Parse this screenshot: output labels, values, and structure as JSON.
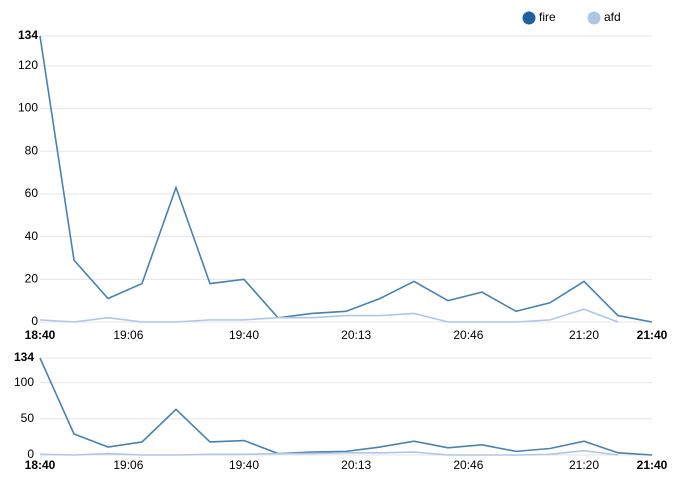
{
  "chart_data": {
    "type": "line",
    "x": [
      "18:40",
      "18:50",
      "19:00",
      "19:10",
      "19:20",
      "19:30",
      "19:40",
      "19:50",
      "20:00",
      "20:10",
      "20:20",
      "20:30",
      "20:40",
      "20:50",
      "21:00",
      "21:10",
      "21:20",
      "21:30",
      "21:40"
    ],
    "series": [
      {
        "name": "fire",
        "color": "#4682b4",
        "legend_color": "#1f5f9e",
        "values": [
          134,
          29,
          11,
          18,
          63,
          18,
          20,
          2,
          4,
          5,
          11,
          19,
          10,
          14,
          5,
          9,
          19,
          3,
          0
        ]
      },
      {
        "name": "afd",
        "color": "#aec7e8",
        "legend_color": "#aec7e8",
        "values": [
          1,
          0,
          2,
          0,
          0,
          1,
          1,
          2,
          2,
          3,
          3,
          4,
          0,
          0,
          0,
          1,
          6,
          0,
          null
        ]
      }
    ],
    "xlim": [
      "18:40",
      "21:40"
    ],
    "xticks": [
      "18:40",
      "19:06",
      "19:40",
      "20:13",
      "20:46",
      "21:20",
      "21:40"
    ],
    "ylim": [
      0,
      134
    ],
    "yticks": [
      0,
      20,
      40,
      60,
      80,
      100,
      120,
      134
    ],
    "grid": true,
    "context": {
      "ylim": [
        0,
        134
      ],
      "yticks": [
        0,
        50,
        100,
        134
      ]
    }
  }
}
